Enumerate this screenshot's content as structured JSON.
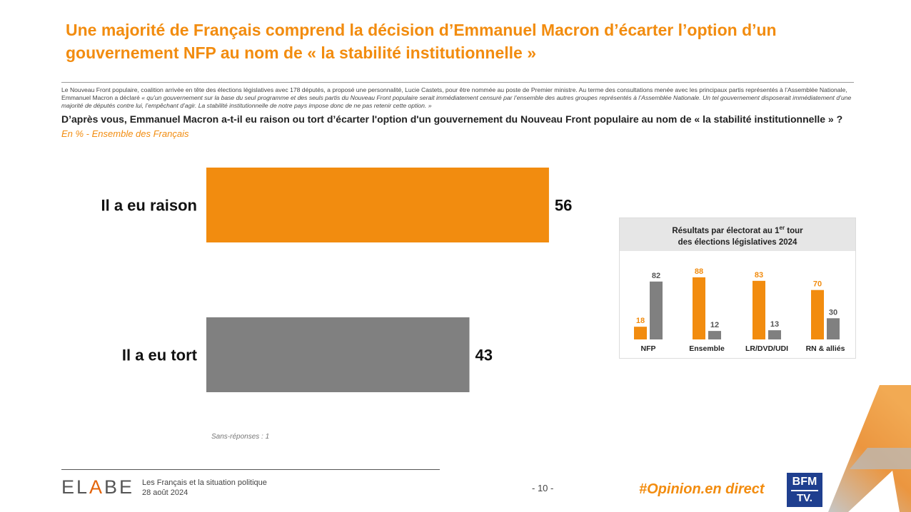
{
  "title": "Une majorité de Français comprend la décision d’Emmanuel Macron d’écarter l’option d’un gouvernement NFP au nom de « la stabilité institutionnelle »",
  "intro_plain": "Le Nouveau Front populaire, coalition arrivée en tête des élections législatives avec 178 députés, a proposé une personnalité, Lucie Castets, pour être nommée au poste de Premier ministre. Au terme des consultations menée avec les principaux partis représentés à l’Assemblée Nationale, Emmanuel Macron a déclaré",
  "intro_quote": "« qu’un gouvernement sur la base du seul programme et des seuls partis du Nouveau Front populaire serait immédiatement censuré par l’ensemble des autres groupes représentés à l’Assemblée Nationale. Un tel gouvernement disposerait immédiatement d’une majorité de députés contre lui, l’empêchant d’agir. La stabilité institutionnelle de notre pays impose donc de ne pas retenir cette option. »",
  "question": "D’après vous, Emmanuel Macron a-t-il eu raison ou tort d’écarter l'option d'un gouvernement du Nouveau Front populaire au nom de « la stabilité institutionnelle » ?",
  "subtitle": "En % - Ensemble des Français",
  "no_answer": "Sans-réponses : 1",
  "inset": {
    "title_line1_pre": "Résultats par électorat au 1",
    "title_sup": "er",
    "title_line1_post": " tour",
    "title_line2": "des élections législatives 2024"
  },
  "footer": {
    "logo_pre": "EL",
    "logo_accent": "A",
    "logo_post": "BE",
    "line1": "Les Français et la situation politique",
    "line2": "28 août 2024",
    "page": "- 10 -",
    "hashtag": "#Opinion.en direct",
    "bfm_top": "BFM",
    "bfm_bottom": "TV."
  },
  "colors": {
    "orange": "#F28C0F",
    "grey": "#808080"
  },
  "chart_data": [
    {
      "type": "bar",
      "orientation": "horizontal",
      "categories": [
        "Il a eu raison",
        "Il a eu tort"
      ],
      "values": [
        56,
        43
      ],
      "colors": [
        "#F28C0F",
        "#808080"
      ],
      "xlim": [
        0,
        100
      ]
    },
    {
      "type": "bar",
      "categories": [
        "NFP",
        "Ensemble",
        "LR/DVD/UDI",
        "RN & alliés"
      ],
      "series": [
        {
          "values": [
            18,
            88,
            83,
            70
          ],
          "color": "#F28C0F"
        },
        {
          "values": [
            82,
            12,
            13,
            30
          ],
          "color": "#808080"
        }
      ],
      "ylim": [
        0,
        100
      ]
    }
  ]
}
